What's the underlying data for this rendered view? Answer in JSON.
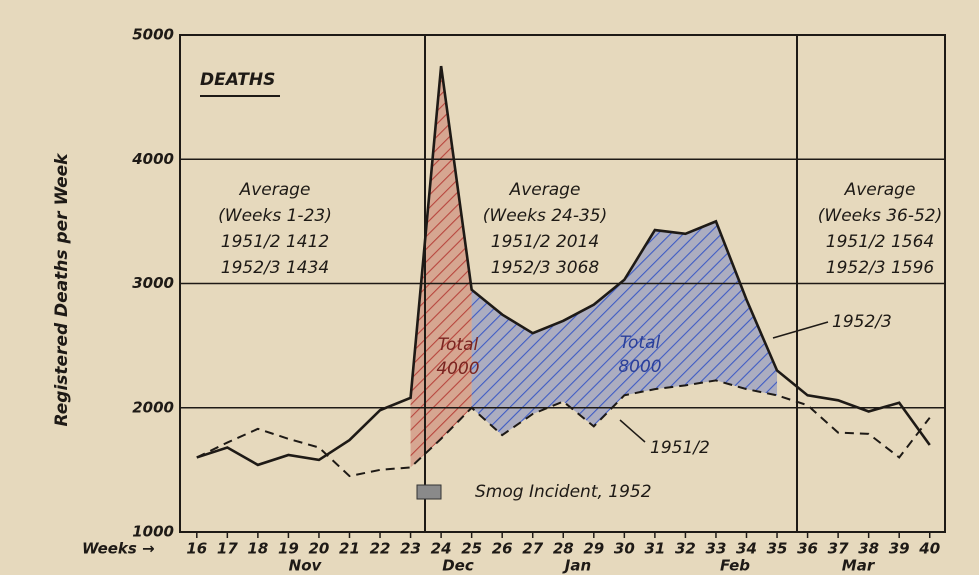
{
  "chart_data": {
    "type": "line",
    "title": "DEATHS",
    "ylabel": "Registered Deaths per Week",
    "xlabel": "Weeks →",
    "x": [
      16,
      17,
      18,
      19,
      20,
      21,
      22,
      23,
      24,
      25,
      26,
      27,
      28,
      29,
      30,
      31,
      32,
      33,
      34,
      35,
      36,
      37,
      38,
      39,
      40
    ],
    "series": [
      {
        "name": "1952/3",
        "color": "#1e1a16",
        "dashed": false,
        "values": [
          1600,
          1680,
          1540,
          1620,
          1580,
          1740,
          1980,
          2080,
          4750,
          2950,
          2750,
          2600,
          2700,
          2830,
          3030,
          3430,
          3400,
          3500,
          2870,
          2300,
          2100,
          2060,
          1970,
          2040,
          1700
        ]
      },
      {
        "name": "1951/2",
        "color": "#1e1a16",
        "dashed": true,
        "values": [
          1600,
          1720,
          1830,
          1750,
          1680,
          1450,
          1500,
          1520,
          1750,
          2000,
          1780,
          1950,
          2050,
          1850,
          2100,
          2150,
          2180,
          2220,
          2150,
          2100,
          2020,
          1800,
          1790,
          1600,
          1920
        ]
      }
    ],
    "shaded": [
      {
        "from": 23,
        "to": 25,
        "color": "#b8463e",
        "label": [
          "Total",
          "4000"
        ]
      },
      {
        "from": 25,
        "to": 35,
        "color": "#3f5cc4",
        "label": [
          "Total",
          "8000"
        ]
      }
    ],
    "months": [
      "Nov",
      "Dec",
      "Jan",
      "Feb",
      "Mar"
    ],
    "averages": [
      [
        "Average",
        "(Weeks 1-23)",
        "1951/2  1412",
        "1952/3  1434"
      ],
      [
        "Average",
        "(Weeks 24-35)",
        "1951/2  2014",
        "1952/3  3068"
      ],
      [
        "Average",
        "(Weeks 36-52)",
        "1951/2  1564",
        "1952/3  1596"
      ]
    ],
    "annotation": "Smog Incident, 1952",
    "xlim": [
      15.45,
      40.5
    ],
    "xticks": [
      16,
      17,
      18,
      19,
      20,
      21,
      22,
      23,
      24,
      25,
      26,
      27,
      28,
      29,
      30,
      31,
      32,
      33,
      34,
      35,
      36,
      37,
      38,
      39,
      40
    ],
    "ylim": [
      1000,
      5000
    ],
    "yticks": [
      1000,
      2000,
      3000,
      4000,
      5000
    ],
    "grid": true
  }
}
